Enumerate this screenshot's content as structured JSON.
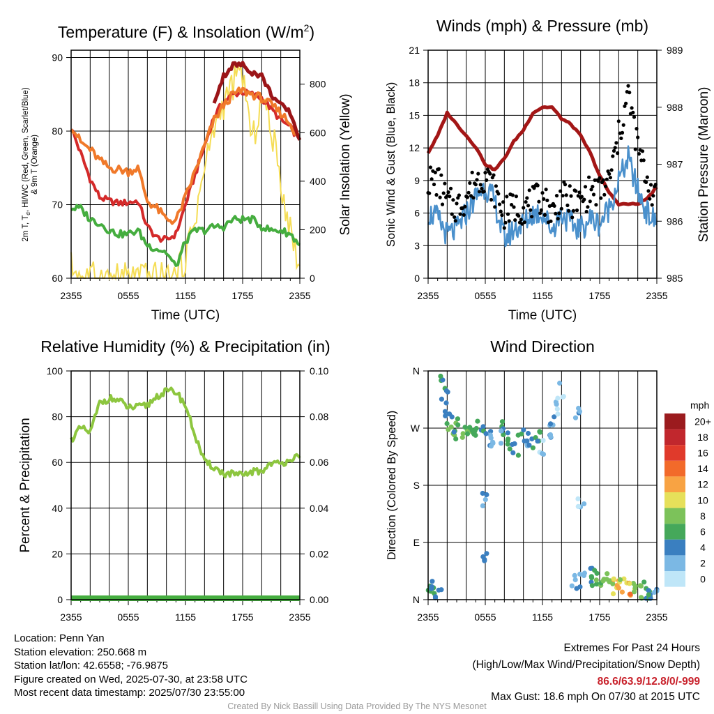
{
  "panels": {
    "temp": {
      "title": "Temperature (F) & Insolation (W/m",
      "title_sup": "2",
      "title_end": ")",
      "ylabel_left_lines": [
        "2m T, T",
        "d",
        ", HI/WC (Red, Green, Scarlet/Blue)",
        "& 9m T (Orange)"
      ],
      "ylabel_right": "Solar Insolation (Yellow)",
      "xlabel": "Time (UTC)"
    },
    "wind": {
      "title": "Winds (mph) & Pressure (mb)",
      "ylabel_left": "Sonic Wind & Gust (Blue, Black)",
      "ylabel_right": "Station Pressure (Maroon)",
      "xlabel": "Time (UTC)"
    },
    "rh": {
      "title": "Relative Humidity (%) & Precipitation (in)",
      "ylabel_left": "Percent & Precipitation"
    },
    "dir": {
      "title": "Wind Direction",
      "ylabel_left": "Direction (Colored By Speed)",
      "colorbar_title": "mph",
      "colorbar_labels": [
        "20+",
        "18",
        "16",
        "14",
        "12",
        "10",
        "8",
        "6",
        "4",
        "2",
        "0"
      ],
      "colorbar_colors": [
        "#9b1b1e",
        "#c1272d",
        "#e03a2b",
        "#f26a2a",
        "#f8a343",
        "#e6e05a",
        "#7cc25a",
        "#45a85a",
        "#3a7fc0",
        "#7bb8e4",
        "#bfe6f8"
      ]
    }
  },
  "footer": {
    "location": "Location: Penn Yan",
    "elevation": "Station elevation: 250.668 m",
    "latlon": "Station lat/lon: 42.6558; -76.9875",
    "created": "Figure created on Wed, 2025-07-30, at 23:58 UTC",
    "recent": "Most recent data timestamp: 2025/07/30 23:55:00",
    "extremes_title": "Extremes For Past 24 Hours",
    "extremes_sub": "(High/Low/Max Wind/Precipitation/Snow Depth)",
    "extremes_values": "86.6/63.9/12.8/0/-999",
    "max_gust": "Max Gust: 18.6 mph On 07/30 at 2015 UTC",
    "credit": "Created By Nick Bassill Using Data Provided By The NYS Mesonet"
  },
  "chart_data": [
    {
      "type": "line",
      "title": "Temperature (F) & Insolation (W/m2)",
      "xlabel": "Time (UTC)",
      "ylabel": "2m T, Td, HI/WC (Red, Green, Scarlet/Blue) & 9m T (Orange)",
      "y2label": "Solar Insolation (Yellow)",
      "xticks": [
        "2355",
        "0555",
        "1155",
        "1755",
        "2355"
      ],
      "ylim": [
        60,
        91
      ],
      "yticks": [
        60,
        70,
        80,
        90
      ],
      "y2lim": [
        0,
        940
      ],
      "y2ticks": [
        0,
        200,
        400,
        600,
        800
      ],
      "x": [
        0,
        1,
        2,
        3,
        4,
        5,
        6,
        7,
        8,
        9,
        10,
        11,
        12,
        13,
        14,
        15,
        16,
        17,
        18,
        19,
        20,
        21,
        22,
        23,
        24
      ],
      "series": [
        {
          "name": "2m T (Red)",
          "color": "#d42a2a",
          "values": [
            80.5,
            77,
            73.5,
            71,
            70.5,
            70.2,
            70.3,
            70.5,
            67,
            65.5,
            65.2,
            66,
            70,
            74,
            78,
            82,
            84,
            85,
            85.3,
            85,
            84.5,
            83,
            81.5,
            80.5,
            78.8
          ]
        },
        {
          "name": "9m T (Orange)",
          "color": "#f0792a",
          "values": [
            80.8,
            78.5,
            77.5,
            76,
            75,
            74.8,
            74.5,
            75,
            70.5,
            69.5,
            68,
            67.8,
            71,
            74.5,
            78,
            81.5,
            83.5,
            85,
            85.5,
            85,
            84.5,
            83.5,
            82.5,
            81,
            78.8
          ]
        },
        {
          "name": "Td (Green)",
          "color": "#45ad3f",
          "values": [
            69.5,
            69.5,
            68,
            67.5,
            66.5,
            66,
            66,
            66.5,
            64.5,
            64,
            63.5,
            61.5,
            65,
            66.5,
            66.5,
            67,
            67,
            68,
            68,
            68,
            67,
            66.5,
            66.5,
            66,
            64.5
          ]
        },
        {
          "name": "HI/WC (Scarlet)",
          "color": "#9b1518",
          "values": [
            84,
            null,
            null,
            null,
            null,
            null,
            null,
            null,
            null,
            null,
            null,
            null,
            null,
            null,
            null,
            84,
            87.5,
            89,
            89,
            88,
            87.5,
            85,
            83.5,
            82.5,
            78.8
          ]
        }
      ],
      "insolation": {
        "name": "Solar Insolation (Yellow)",
        "color": "#f5dd55",
        "values": [
          50,
          5,
          2,
          2,
          2,
          2,
          2,
          2,
          2,
          2,
          2,
          2,
          90,
          250,
          450,
          620,
          720,
          800,
          850,
          550,
          750,
          620,
          400,
          200,
          50
        ]
      }
    },
    {
      "type": "line",
      "title": "Winds (mph) & Pressure (mb)",
      "xlabel": "Time (UTC)",
      "ylabel": "Sonic Wind & Gust (Blue, Black)",
      "y2label": "Station Pressure (Maroon)",
      "xticks": [
        "2355",
        "0555",
        "1155",
        "1755",
        "2355"
      ],
      "ylim": [
        0,
        21
      ],
      "yticks": [
        0,
        3,
        6,
        9,
        12,
        15,
        18,
        21
      ],
      "y2lim": [
        985,
        989
      ],
      "y2ticks": [
        985,
        986,
        987,
        988,
        989
      ],
      "x": [
        0,
        1,
        2,
        3,
        4,
        5,
        6,
        7,
        8,
        9,
        10,
        11,
        12,
        13,
        14,
        15,
        16,
        17,
        18,
        19,
        20,
        21,
        22,
        23,
        24
      ],
      "series": [
        {
          "name": "Sonic Wind (Blue)",
          "color": "#4a90cc",
          "values": [
            6,
            5.5,
            4,
            4.5,
            6,
            7.5,
            8.5,
            7,
            3.5,
            4.5,
            5,
            6,
            6,
            4.5,
            6,
            5,
            4.5,
            5.5,
            5,
            6.5,
            9,
            11,
            8,
            6,
            5
          ]
        },
        {
          "name": "Gust (Black)",
          "color": "#000000",
          "values": [
            9,
            9,
            7,
            6.5,
            7.5,
            9,
            9.5,
            8,
            6,
            6.5,
            6.5,
            7,
            7.5,
            6,
            7.5,
            7,
            7,
            8,
            8,
            9,
            13,
            17,
            12,
            9,
            7
          ]
        },
        {
          "name": "Station Pressure (Maroon)",
          "color": "#a31616",
          "values": [
            987.2,
            987.5,
            987.9,
            987.7,
            987.5,
            987.3,
            987,
            986.9,
            987.1,
            987.4,
            987.6,
            987.9,
            988,
            988,
            987.8,
            987.7,
            987.5,
            987.2,
            986.8,
            986.5,
            986.3,
            986.3,
            986.3,
            986.4,
            986.6
          ]
        }
      ]
    },
    {
      "type": "line",
      "title": "Relative Humidity (%) & Precipitation (in)",
      "ylabel": "Percent & Precipitation",
      "xticks": [
        "2355",
        "0555",
        "1155",
        "1755",
        "2355"
      ],
      "ylim": [
        0,
        100
      ],
      "yticks": [
        0,
        20,
        40,
        60,
        80,
        100
      ],
      "y2lim": [
        0,
        0.1
      ],
      "y2ticks": [
        "0.00",
        "0.02",
        "0.04",
        "0.06",
        "0.08",
        "0.10"
      ],
      "x": [
        0,
        1,
        2,
        3,
        4,
        5,
        6,
        7,
        8,
        9,
        10,
        11,
        12,
        13,
        14,
        15,
        16,
        17,
        18,
        19,
        20,
        21,
        22,
        23,
        24
      ],
      "series": [
        {
          "name": "Relative Humidity",
          "color": "#8dc63f",
          "values": [
            70,
            75,
            73,
            86,
            88,
            87,
            84,
            84,
            85,
            89,
            91,
            91,
            85,
            72,
            60,
            58,
            55,
            55,
            54,
            56,
            56,
            60,
            59,
            62,
            62
          ]
        },
        {
          "name": "Precipitation",
          "color": "#45ad3f",
          "values": [
            0,
            0,
            0,
            0,
            0,
            0,
            0,
            0,
            0,
            0,
            0,
            0,
            0,
            0,
            0,
            0,
            0,
            0,
            0,
            0,
            0,
            0,
            0,
            0,
            0
          ]
        }
      ]
    },
    {
      "type": "scatter",
      "title": "Wind Direction",
      "ylabel": "Direction (Colored By Speed)",
      "xticks": [
        "2355",
        "0555",
        "1155",
        "1755",
        "2355"
      ],
      "yticks": [
        "N",
        "E",
        "S",
        "W",
        "N"
      ],
      "ylim": [
        0,
        360
      ],
      "colorbar": {
        "title": "mph",
        "levels": [
          "0",
          "2",
          "4",
          "6",
          "8",
          "10",
          "12",
          "14",
          "16",
          "18",
          "20+"
        ]
      },
      "points": [
        {
          "x": 0.2,
          "y": 10,
          "mph": 6
        },
        {
          "x": 0.5,
          "y": 5,
          "mph": 7
        },
        {
          "x": 0.7,
          "y": 18,
          "mph": 5
        },
        {
          "x": 1.0,
          "y": 3,
          "mph": 4
        },
        {
          "x": 1.6,
          "y": 345,
          "mph": 6
        },
        {
          "x": 1.8,
          "y": 320,
          "mph": 4
        },
        {
          "x": 2.1,
          "y": 290,
          "mph": 5
        },
        {
          "x": 2.5,
          "y": 270,
          "mph": 7
        },
        {
          "x": 2.9,
          "y": 275,
          "mph": 6
        },
        {
          "x": 3.3,
          "y": 265,
          "mph": 7
        },
        {
          "x": 4.0,
          "y": 262,
          "mph": 8
        },
        {
          "x": 4.5,
          "y": 268,
          "mph": 7
        },
        {
          "x": 5.0,
          "y": 260,
          "mph": 6
        },
        {
          "x": 5.5,
          "y": 270,
          "mph": 5
        },
        {
          "x": 5.8,
          "y": 155,
          "mph": 3
        },
        {
          "x": 6.0,
          "y": 65,
          "mph": 4
        },
        {
          "x": 6.3,
          "y": 255,
          "mph": 4
        },
        {
          "x": 6.8,
          "y": 245,
          "mph": 3
        },
        {
          "x": 7.5,
          "y": 270,
          "mph": 6
        },
        {
          "x": 8.0,
          "y": 255,
          "mph": 4
        },
        {
          "x": 8.6,
          "y": 250,
          "mph": 7
        },
        {
          "x": 9.2,
          "y": 240,
          "mph": 5
        },
        {
          "x": 9.8,
          "y": 260,
          "mph": 6
        },
        {
          "x": 10.5,
          "y": 255,
          "mph": 3
        },
        {
          "x": 11.0,
          "y": 248,
          "mph": 5
        },
        {
          "x": 11.5,
          "y": 262,
          "mph": 6
        },
        {
          "x": 12.0,
          "y": 240,
          "mph": 2
        },
        {
          "x": 12.5,
          "y": 258,
          "mph": 4
        },
        {
          "x": 13.0,
          "y": 275,
          "mph": 3
        },
        {
          "x": 13.5,
          "y": 300,
          "mph": 2
        },
        {
          "x": 14.0,
          "y": 330,
          "mph": 1
        },
        {
          "x": 15.2,
          "y": 25,
          "mph": 4
        },
        {
          "x": 15.6,
          "y": 290,
          "mph": 3
        },
        {
          "x": 16.0,
          "y": 150,
          "mph": 1
        },
        {
          "x": 16.3,
          "y": 30,
          "mph": 4
        },
        {
          "x": 16.8,
          "y": 40,
          "mph": 5
        },
        {
          "x": 17.5,
          "y": 35,
          "mph": 6
        },
        {
          "x": 18.0,
          "y": 32,
          "mph": 7
        },
        {
          "x": 18.5,
          "y": 30,
          "mph": 9
        },
        {
          "x": 19.0,
          "y": 28,
          "mph": 8
        },
        {
          "x": 19.5,
          "y": 20,
          "mph": 11
        },
        {
          "x": 20.0,
          "y": 18,
          "mph": 12
        },
        {
          "x": 20.5,
          "y": 22,
          "mph": 10
        },
        {
          "x": 21.0,
          "y": 15,
          "mph": 13
        },
        {
          "x": 21.5,
          "y": 20,
          "mph": 9
        },
        {
          "x": 22.0,
          "y": 25,
          "mph": 8
        },
        {
          "x": 22.5,
          "y": 15,
          "mph": 7
        },
        {
          "x": 23.0,
          "y": 10,
          "mph": 6
        },
        {
          "x": 23.5,
          "y": 8,
          "mph": 5
        },
        {
          "x": 24.0,
          "y": 5,
          "mph": 4
        }
      ]
    }
  ]
}
